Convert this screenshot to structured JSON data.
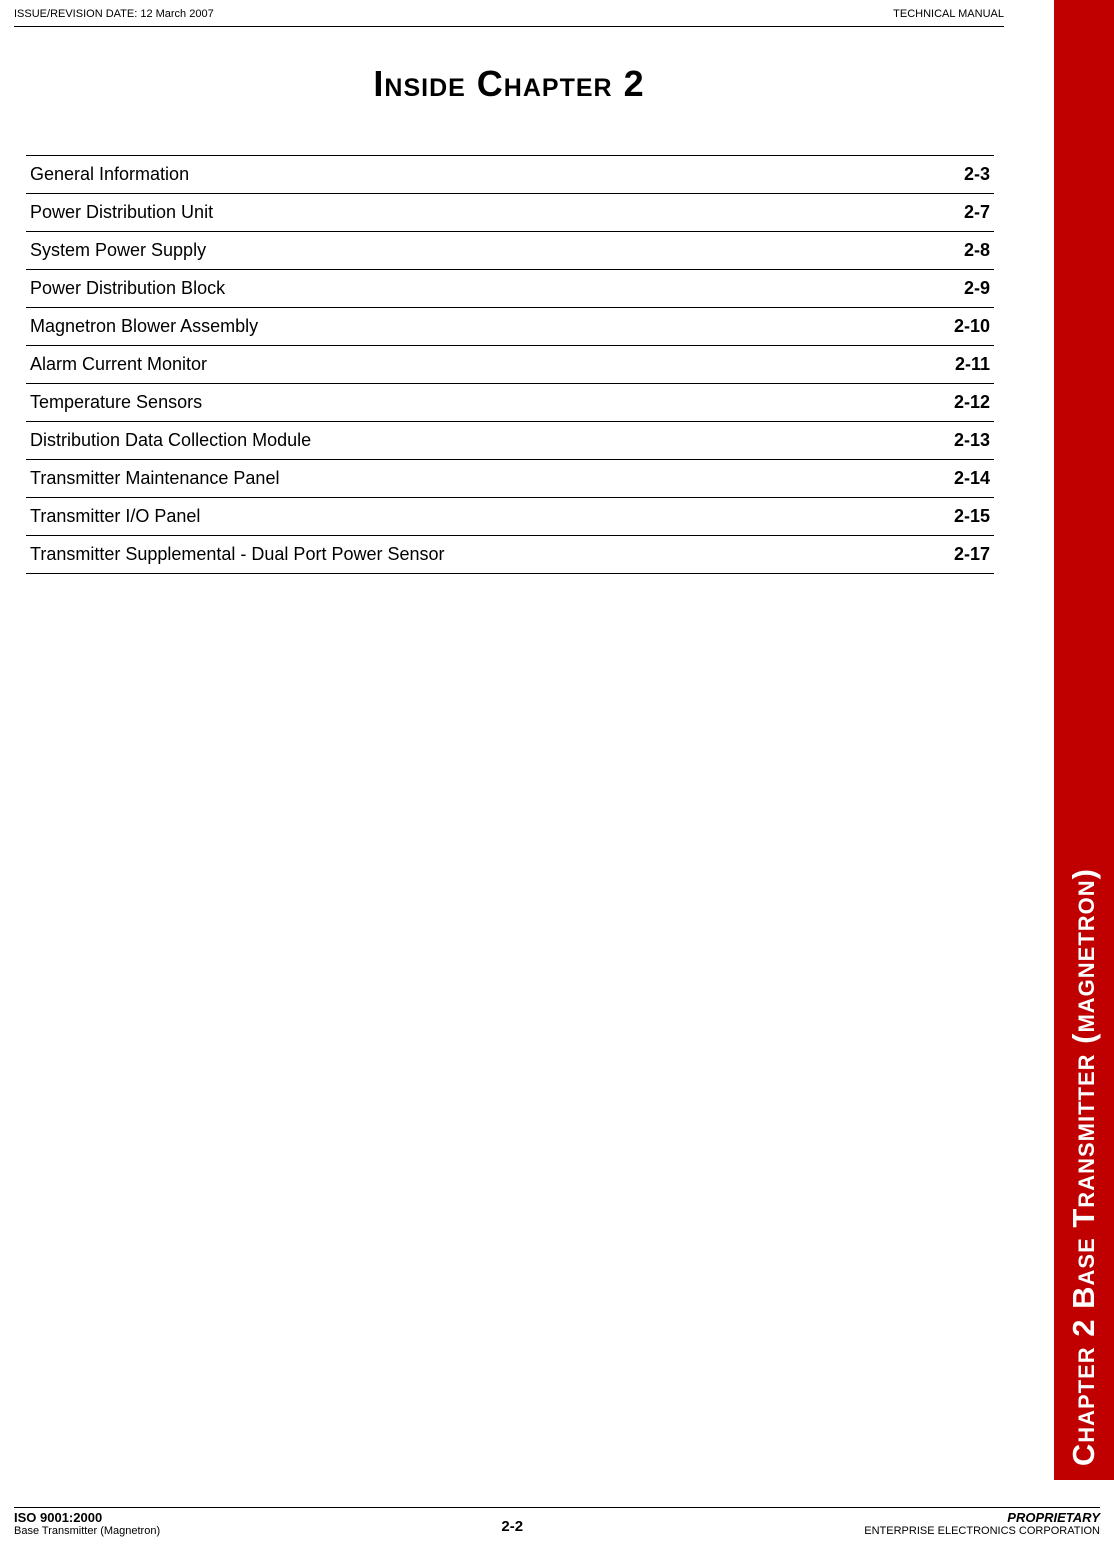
{
  "header": {
    "issue_date_label": "ISSUE/REVISION DATE:  12 March 2007",
    "manual_type": "TECHNICAL MANUAL"
  },
  "title": "Inside Chapter 2",
  "toc": {
    "rows": [
      {
        "title": "General Information",
        "page": "2-3"
      },
      {
        "title": "Power Distribution Unit",
        "page": "2-7"
      },
      {
        "title": "System Power Supply",
        "page": "2-8"
      },
      {
        "title": "Power Distribution Block",
        "page": "2-9"
      },
      {
        "title": "Magnetron Blower Assembly",
        "page": "2-10"
      },
      {
        "title": "Alarm Current Monitor",
        "page": "2-11"
      },
      {
        "title": "Temperature Sensors",
        "page": "2-12"
      },
      {
        "title": "Distribution Data Collection Module",
        "page": "2-13"
      },
      {
        "title": "Transmitter Maintenance Panel",
        "page": "2-14"
      },
      {
        "title": "Transmitter I/O Panel",
        "page": "2-15"
      },
      {
        "title": "Transmitter Supplemental  - Dual Port Power Sensor",
        "page": "2-17"
      }
    ]
  },
  "side_tab": {
    "label": "Chapter 2   Base Transmitter (magnetron)",
    "background_color": "#c00000",
    "text_color": "#ffffff"
  },
  "footer": {
    "left_line1": "ISO 9001:2000",
    "left_line2": "Base Transmitter (Magnetron)",
    "center": "2-2",
    "right_line1": "PROPRIETARY",
    "right_line2": "ENTERPRISE ELECTRONICS CORPORATION"
  },
  "colors": {
    "text": "#000000",
    "background": "#ffffff",
    "tab_bg": "#c00000",
    "tab_text": "#ffffff",
    "rule": "#000000"
  },
  "typography": {
    "header_fontsize": 11,
    "title_fontsize": 36,
    "toc_fontsize": 18,
    "side_tab_fontsize": 31,
    "footer_bold_fontsize": 13,
    "footer_small_fontsize": 11,
    "footer_center_fontsize": 15
  }
}
